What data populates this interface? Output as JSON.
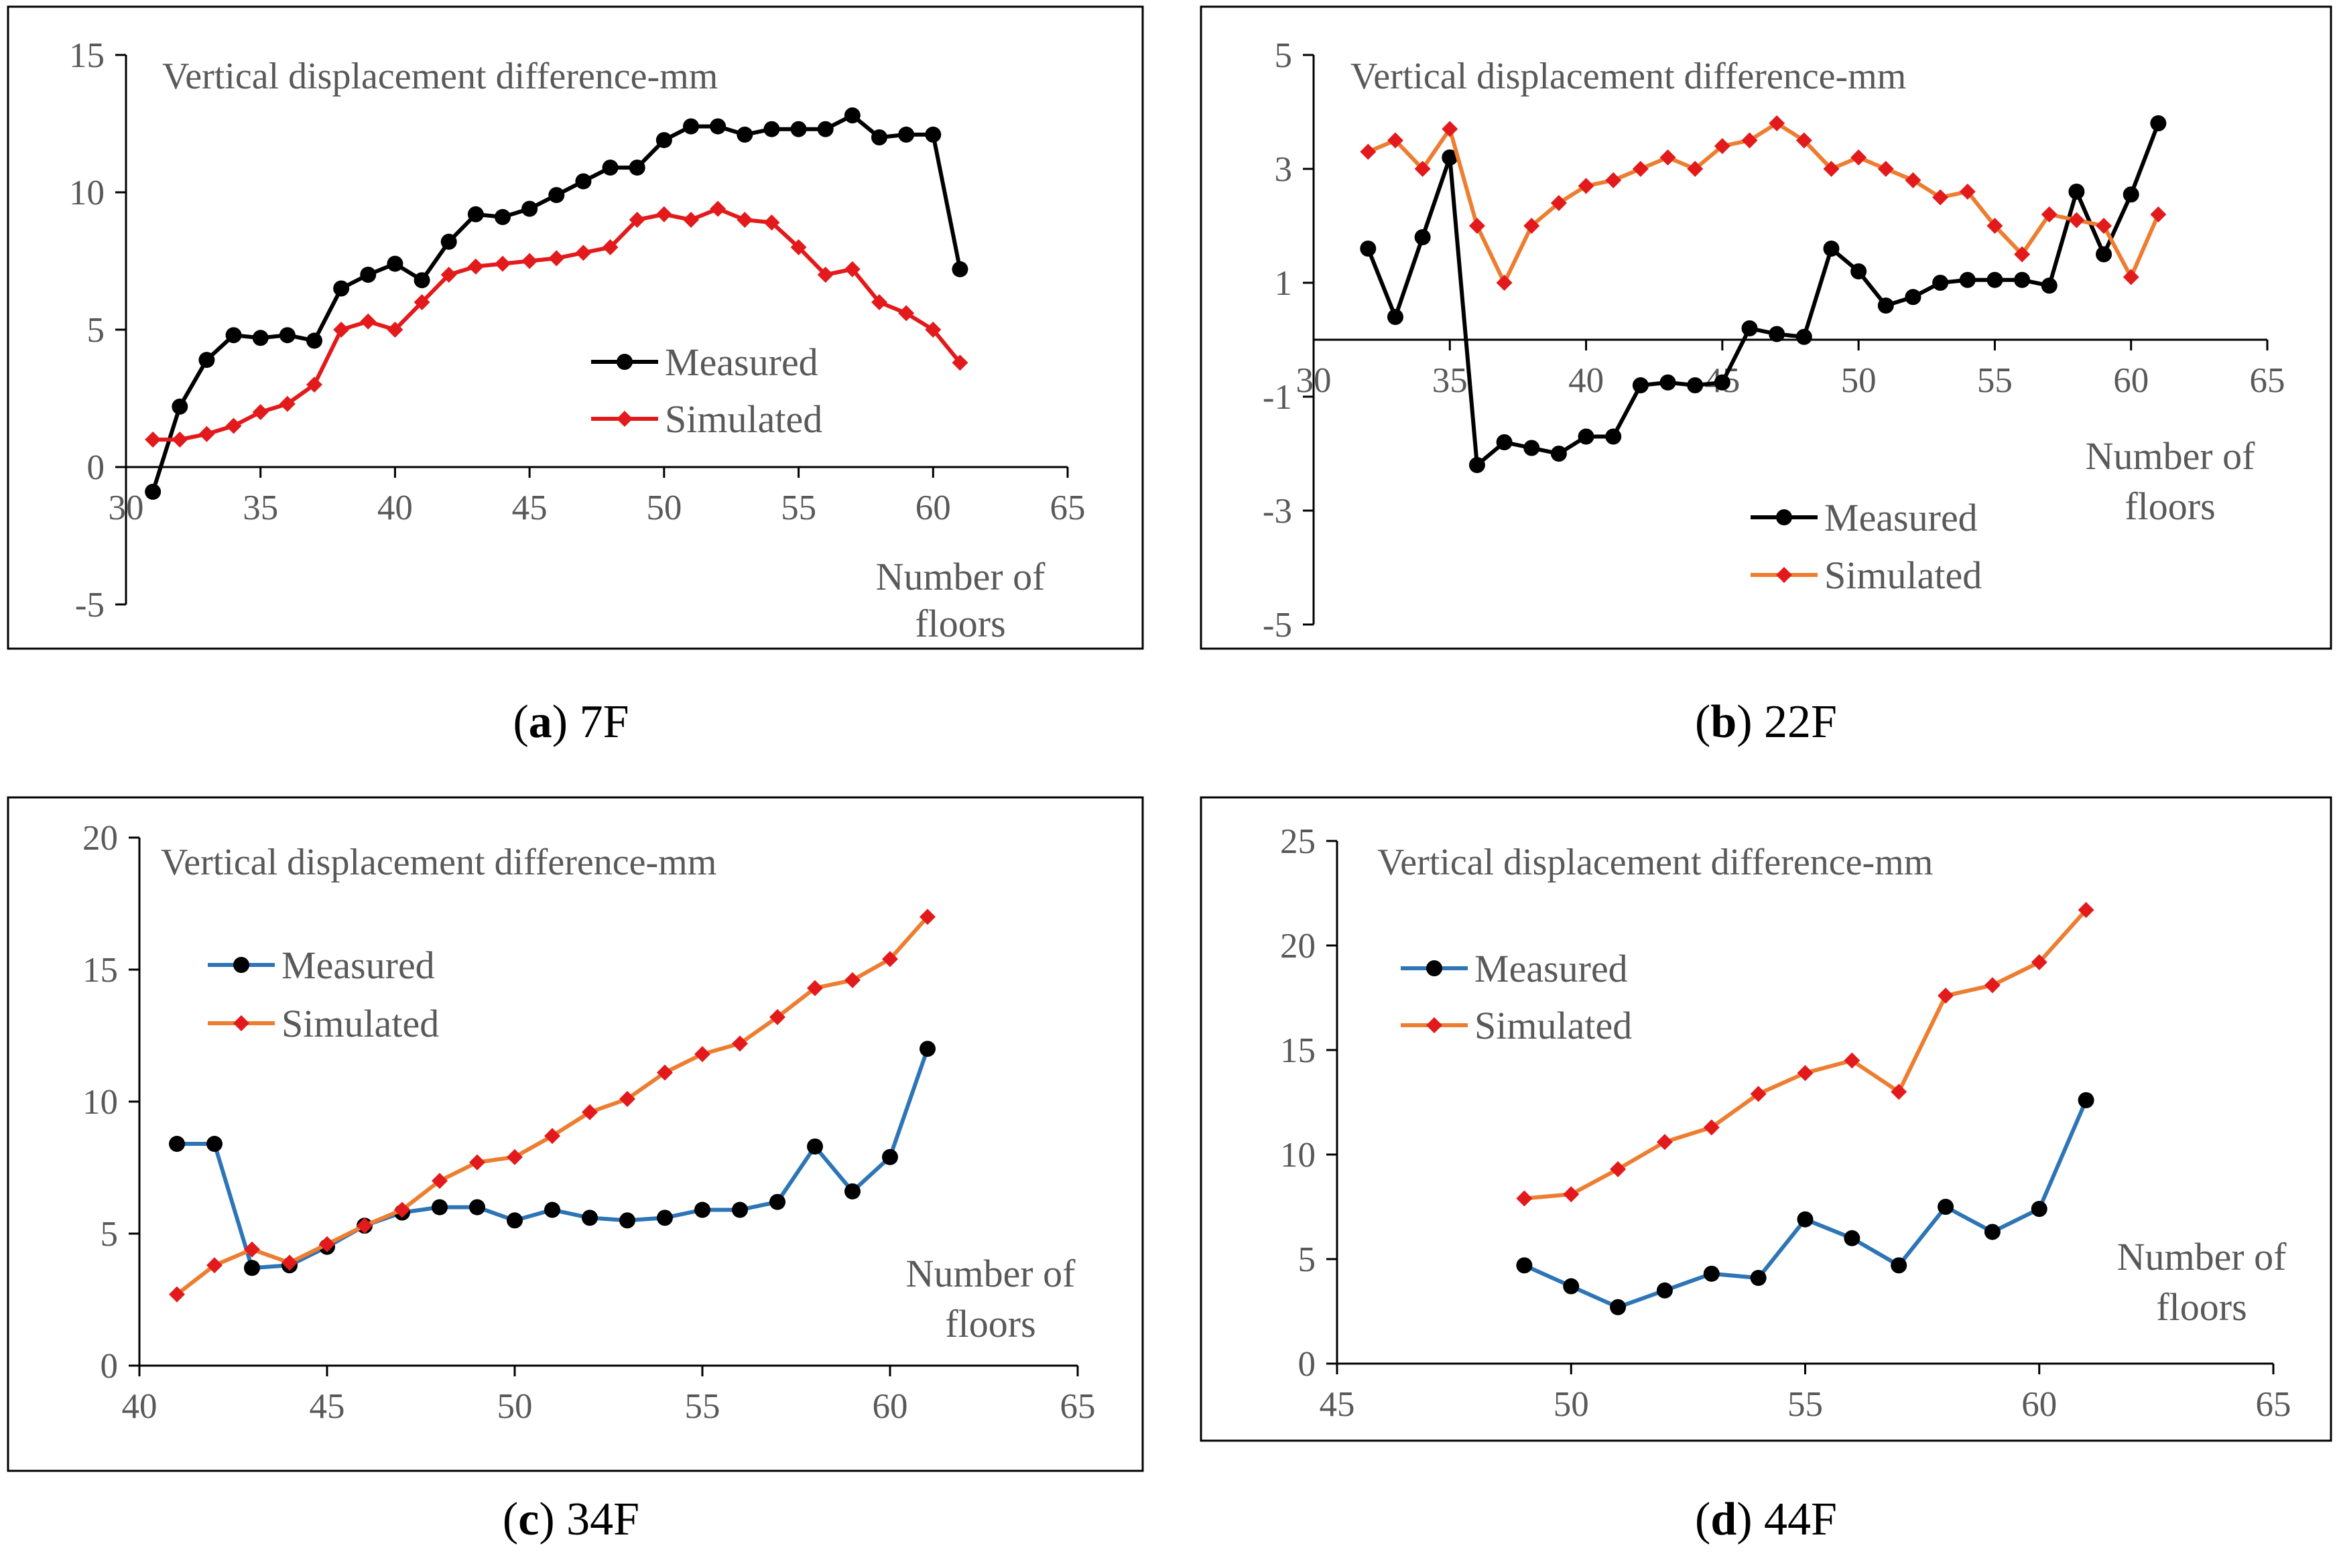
{
  "chart_data": [
    {
      "id": "a",
      "type": "line",
      "caption": {
        "letter": "a",
        "text": " 7F"
      },
      "title": "Vertical displacement difference-mm",
      "xlabel_line1": "Number of",
      "xlabel_line2": "floors",
      "xlim": [
        30,
        65
      ],
      "ylim": [
        -5,
        15
      ],
      "xticks": [
        30,
        35,
        40,
        45,
        50,
        55,
        60,
        65
      ],
      "yticks": [
        -5,
        0,
        5,
        10,
        15
      ],
      "legend": "middle-right",
      "series": [
        {
          "name": "Measured",
          "color": "#000000",
          "marker_color": "#000000",
          "marker": "circle",
          "x": [
            31,
            32,
            33,
            34,
            35,
            36,
            37,
            38,
            39,
            40,
            41,
            42,
            43,
            44,
            45,
            46,
            47,
            48,
            49,
            50,
            51,
            52,
            53,
            54,
            55,
            56,
            57,
            58,
            59,
            60,
            61
          ],
          "values": [
            -0.9,
            2.2,
            3.9,
            4.8,
            4.7,
            4.8,
            4.6,
            6.5,
            7.0,
            7.4,
            6.8,
            8.2,
            9.2,
            9.1,
            9.4,
            9.9,
            10.4,
            10.9,
            10.9,
            11.9,
            12.4,
            12.4,
            12.1,
            12.3,
            12.3,
            12.3,
            12.8,
            12.0,
            12.1,
            12.1,
            7.2
          ]
        },
        {
          "name": "Simulated",
          "color": "#e31a1c",
          "marker_color": "#e31a1c",
          "marker": "diamond",
          "x": [
            31,
            32,
            33,
            34,
            35,
            36,
            37,
            38,
            39,
            40,
            41,
            42,
            43,
            44,
            45,
            46,
            47,
            48,
            49,
            50,
            51,
            52,
            53,
            54,
            55,
            56,
            57,
            58,
            59,
            60,
            61
          ],
          "values": [
            1.0,
            1.0,
            1.2,
            1.5,
            2.0,
            2.3,
            3.0,
            5.0,
            5.3,
            5.0,
            6.0,
            7.0,
            7.3,
            7.4,
            7.5,
            7.6,
            7.8,
            8.0,
            9.0,
            9.2,
            9.0,
            9.4,
            9.0,
            8.9,
            8.0,
            7.0,
            7.2,
            6.0,
            5.6,
            5.0,
            3.8
          ]
        }
      ]
    },
    {
      "id": "b",
      "type": "line",
      "caption": {
        "letter": "b",
        "text": " 22F"
      },
      "title": "Vertical displacement difference-mm",
      "xlabel_line1": "Number of",
      "xlabel_line2": "floors",
      "xlim": [
        30,
        65
      ],
      "ylim": [
        -5,
        5
      ],
      "xticks": [
        30,
        35,
        40,
        45,
        50,
        55,
        60,
        65
      ],
      "yticks": [
        -5,
        -3,
        -1,
        1,
        3,
        5
      ],
      "legend": "bottom-center",
      "series": [
        {
          "name": "Measured",
          "color": "#000000",
          "marker_color": "#000000",
          "marker": "circle",
          "x": [
            32,
            33,
            34,
            35,
            36,
            37,
            38,
            39,
            40,
            41,
            42,
            43,
            44,
            45,
            46,
            47,
            48,
            49,
            50,
            51,
            52,
            53,
            54,
            55,
            56,
            57,
            58,
            59,
            60,
            61
          ],
          "values": [
            1.6,
            0.4,
            1.8,
            3.2,
            -2.2,
            -1.8,
            -1.9,
            -2.0,
            -1.7,
            -1.7,
            -0.8,
            -0.75,
            -0.8,
            -0.75,
            0.2,
            0.1,
            0.05,
            1.6,
            1.2,
            0.6,
            0.75,
            1.0,
            1.05,
            1.05,
            1.05,
            0.95,
            2.6,
            1.5,
            2.55,
            3.8
          ]
        },
        {
          "name": "Simulated",
          "color": "#ed7d31",
          "marker_color": "#e31a1c",
          "marker": "diamond",
          "x": [
            32,
            33,
            34,
            35,
            36,
            37,
            38,
            39,
            40,
            41,
            42,
            43,
            44,
            45,
            46,
            47,
            48,
            49,
            50,
            51,
            52,
            53,
            54,
            55,
            56,
            57,
            58,
            59,
            60,
            61
          ],
          "values": [
            3.3,
            3.5,
            3.0,
            3.7,
            2.0,
            1.0,
            2.0,
            2.4,
            2.7,
            2.8,
            3.0,
            3.2,
            3.0,
            3.4,
            3.5,
            3.8,
            3.5,
            3.0,
            3.2,
            3.0,
            2.8,
            2.5,
            2.6,
            2.0,
            1.5,
            2.2,
            2.1,
            2.0,
            1.1,
            2.2
          ]
        }
      ]
    },
    {
      "id": "c",
      "type": "line",
      "caption": {
        "letter": "c",
        "text": " 34F"
      },
      "title": "Vertical displacement difference-mm",
      "xlabel_line1": "Number of",
      "xlabel_line2": "floors",
      "xlim": [
        40,
        65
      ],
      "ylim": [
        0,
        20
      ],
      "xticks": [
        40,
        45,
        50,
        55,
        60,
        65
      ],
      "yticks": [
        0,
        5,
        10,
        15,
        20
      ],
      "legend": "top-left",
      "series": [
        {
          "name": "Measured",
          "color": "#2e75b6",
          "marker_color": "#000000",
          "marker": "circle",
          "x": [
            41,
            42,
            43,
            44,
            45,
            46,
            47,
            48,
            49,
            50,
            51,
            52,
            53,
            54,
            55,
            56,
            57,
            58,
            59,
            60,
            61
          ],
          "values": [
            8.4,
            8.4,
            3.7,
            3.8,
            4.5,
            5.3,
            5.8,
            6.0,
            6.0,
            5.5,
            5.9,
            5.6,
            5.5,
            5.6,
            5.9,
            5.9,
            6.2,
            8.3,
            6.6,
            7.9,
            12.0
          ]
        },
        {
          "name": "Simulated",
          "color": "#ed7d31",
          "marker_color": "#e31a1c",
          "marker": "diamond",
          "x": [
            41,
            42,
            43,
            44,
            45,
            46,
            47,
            48,
            49,
            50,
            51,
            52,
            53,
            54,
            55,
            56,
            57,
            58,
            59,
            60,
            61
          ],
          "values": [
            2.7,
            3.8,
            4.4,
            3.9,
            4.6,
            5.3,
            5.9,
            7.0,
            7.7,
            7.9,
            8.7,
            9.6,
            10.1,
            11.1,
            11.8,
            12.2,
            13.2,
            14.3,
            14.6,
            15.4,
            17.0
          ]
        }
      ]
    },
    {
      "id": "d",
      "type": "line",
      "caption": {
        "letter": "d",
        "text": " 44F"
      },
      "title": "Vertical displacement difference-mm",
      "xlabel_line1": "Number of",
      "xlabel_line2": "floors",
      "xlim": [
        45,
        65
      ],
      "ylim": [
        0,
        25
      ],
      "xticks": [
        45,
        50,
        55,
        60,
        65
      ],
      "yticks": [
        0,
        5,
        10,
        15,
        20,
        25
      ],
      "legend": "top-left",
      "series": [
        {
          "name": "Measured",
          "color": "#2e75b6",
          "marker_color": "#000000",
          "marker": "circle",
          "x": [
            49,
            50,
            51,
            52,
            53,
            54,
            55,
            56,
            57,
            58,
            59,
            60,
            61
          ],
          "values": [
            4.7,
            3.7,
            2.7,
            3.5,
            4.3,
            4.1,
            6.9,
            6.0,
            4.7,
            7.5,
            6.3,
            7.4,
            12.6
          ]
        },
        {
          "name": "Simulated",
          "color": "#ed7d31",
          "marker_color": "#e31a1c",
          "marker": "diamond",
          "x": [
            49,
            50,
            51,
            52,
            53,
            54,
            55,
            56,
            57,
            58,
            59,
            60,
            61
          ],
          "values": [
            7.9,
            8.1,
            9.3,
            10.6,
            11.3,
            12.9,
            13.9,
            14.5,
            13.0,
            17.6,
            18.1,
            19.2,
            21.7
          ]
        }
      ]
    }
  ]
}
